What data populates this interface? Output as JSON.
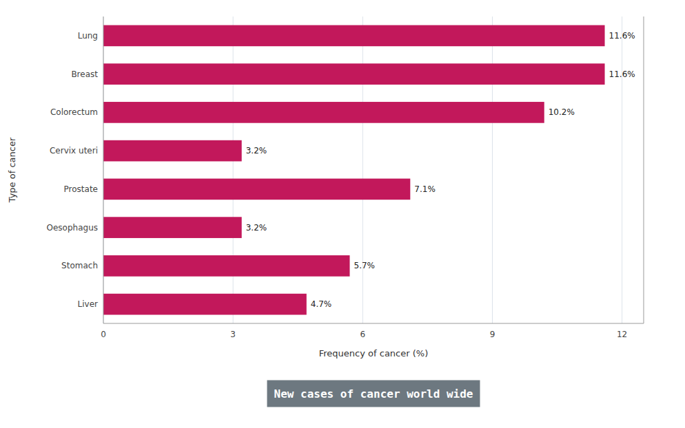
{
  "chart_data": {
    "type": "bar",
    "orientation": "horizontal",
    "title": "New cases of cancer world wide",
    "xlabel": "Frequency of cancer (%)",
    "ylabel": "Type of cancer",
    "categories": [
      "Lung",
      "Breast",
      "Colorectum",
      "Cervix uteri",
      "Prostate",
      "Oesophagus",
      "Stomach",
      "Liver"
    ],
    "values": [
      11.6,
      11.6,
      10.2,
      3.2,
      7.1,
      3.2,
      5.7,
      4.7
    ],
    "value_labels": [
      "11.6%",
      "11.6%",
      "10.2%",
      "3.2%",
      "7.1%",
      "3.2%",
      "5.7%",
      "4.7%"
    ],
    "data_labels": true,
    "color": "#C2185B",
    "xlim": [
      0,
      12.5
    ],
    "xticks": [
      0,
      3,
      6,
      9,
      12
    ],
    "grid": true
  }
}
